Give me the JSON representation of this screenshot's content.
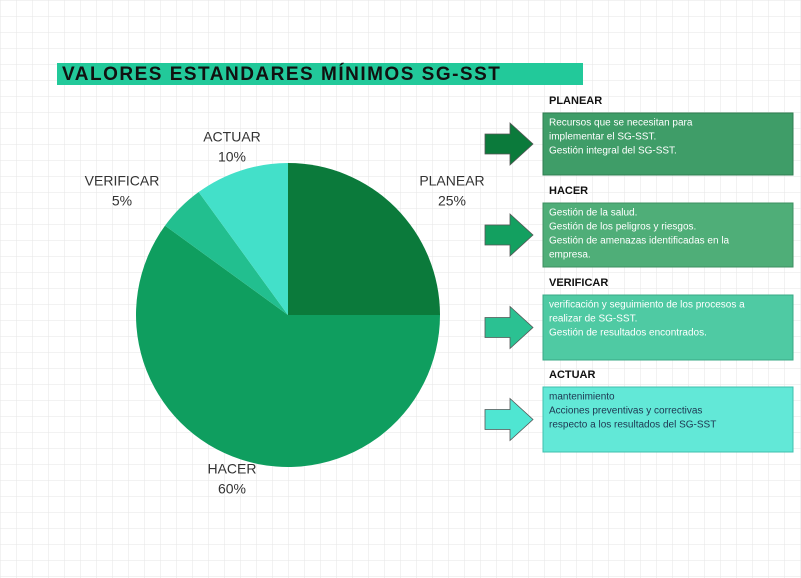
{
  "chart_data": {
    "type": "pie",
    "title": "VALORES ESTANDARES MÍNIMOS SG-SST",
    "categories": [
      "PLANEAR",
      "HACER",
      "VERIFICAR",
      "ACTUAR"
    ],
    "values": [
      25,
      60,
      5,
      10
    ],
    "value_labels": [
      "25%",
      "60%",
      "5%",
      "10%"
    ],
    "colors": [
      "#0b7a3b",
      "#0f9e5f",
      "#22bf8f",
      "#43e0c9"
    ]
  },
  "panels": [
    {
      "title": "PLANEAR",
      "lines": [
        "Recursos que se necesitan para",
        "implementar el SG-SST.",
        "Gestión integral del SG-SST."
      ]
    },
    {
      "title": "HACER",
      "lines": [
        "Gestión de la salud.",
        "Gestión de los peligros y riesgos.",
        "Gestión de amenazas identificadas en la",
        "empresa."
      ]
    },
    {
      "title": "VERIFICAR",
      "lines": [
        "verificación y seguimiento de los procesos a",
        "realizar de SG-SST.",
        "Gestión de resultados encontrados."
      ]
    },
    {
      "title": "ACTUAR",
      "lines": [
        "mantenimiento",
        "Acciones preventivas y correctivas",
        "respecto a los resultados del SG-SST"
      ]
    }
  ]
}
